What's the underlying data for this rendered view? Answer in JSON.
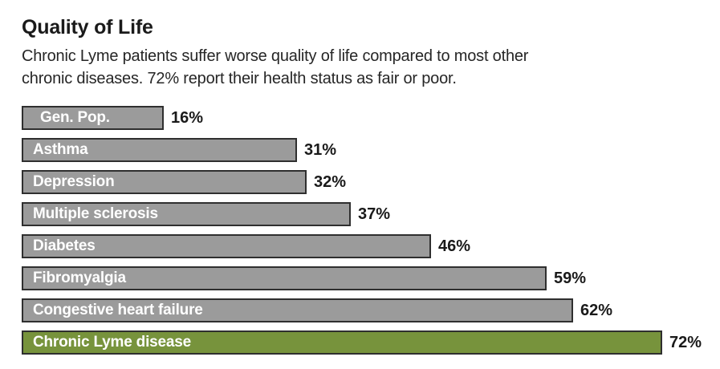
{
  "header": {
    "title": "Quality of Life",
    "subtitle_lines": [
      "Chronic Lyme patients suffer worse quality of life compared to most other",
      "chronic diseases. 72% report their health status as fair or poor."
    ]
  },
  "colors": {
    "background": "#ffffff",
    "bar_fill": "#9b9b9b",
    "bar_border": "#2f2f2f",
    "highlight_fill": "#77933c",
    "label_text": "#ffffff",
    "value_text": "#1a1a1a"
  },
  "chart_data": {
    "type": "bar",
    "orientation": "horizontal",
    "title": "Quality of Life",
    "subtitle": "Chronic Lyme patients suffer worse quality of life compared to most other chronic diseases. 72% report their health status as fair or poor.",
    "categories": [
      "Gen. Pop.",
      "Asthma",
      "Depression",
      "Multiple sclerosis",
      "Diabetes",
      "Fibromyalgia",
      "Congestive heart failure",
      "Chronic Lyme disease"
    ],
    "values": [
      16,
      31,
      32,
      37,
      46,
      59,
      62,
      72
    ],
    "xlim": [
      0,
      80
    ],
    "grid": false,
    "legend": false,
    "value_label_position": "outside-end",
    "category_label_position": "inside-start",
    "rows": [
      {
        "label": "Gen. Pop.",
        "value": 16,
        "value_label": "16%",
        "highlight": false
      },
      {
        "label": "Asthma",
        "value": 31,
        "value_label": "31%",
        "highlight": false
      },
      {
        "label": "Depression",
        "value": 32,
        "value_label": "32%",
        "highlight": false
      },
      {
        "label": "Multiple sclerosis",
        "value": 37,
        "value_label": "37%",
        "highlight": false
      },
      {
        "label": "Diabetes",
        "value": 46,
        "value_label": "46%",
        "highlight": false
      },
      {
        "label": "Fibromyalgia",
        "value": 59,
        "value_label": "59%",
        "highlight": false
      },
      {
        "label": "Congestive heart failure",
        "value": 62,
        "value_label": "62%",
        "highlight": false
      },
      {
        "label": "Chronic Lyme disease",
        "value": 72,
        "value_label": "72%",
        "highlight": true
      }
    ]
  }
}
